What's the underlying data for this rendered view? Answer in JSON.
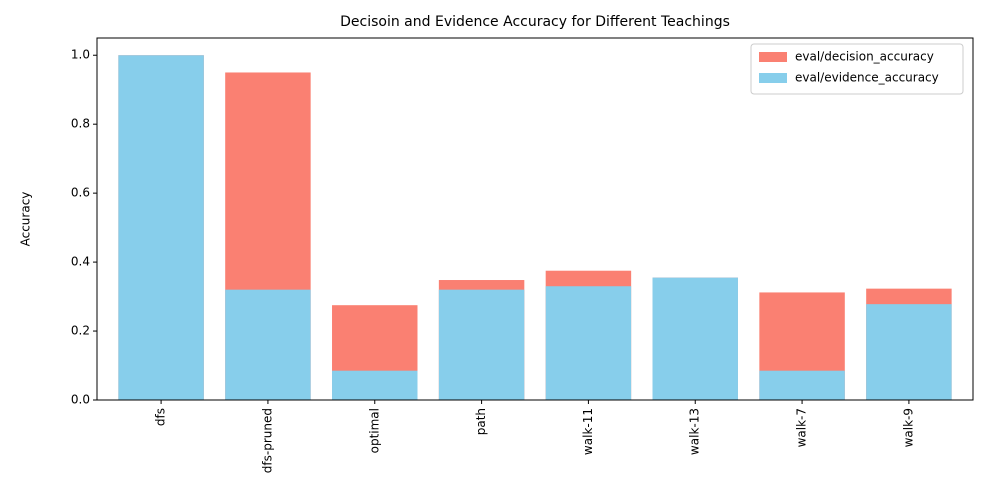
{
  "chart_data": {
    "type": "bar",
    "title": "Decisoin and Evidence Accuracy for Different Teachings",
    "y_label": "Accuracy",
    "categories": [
      "dfs",
      "dfs-pruned",
      "optimal",
      "path",
      "walk-11",
      "walk-13",
      "walk-7",
      "walk-9"
    ],
    "series": [
      {
        "name": "eval/decision_accuracy",
        "color": "#fa8072",
        "values": [
          1.0,
          0.95,
          0.275,
          0.348,
          0.375,
          0.355,
          0.312,
          0.323
        ]
      },
      {
        "name": "eval/evidence_accuracy",
        "color": "#87ceeb",
        "values": [
          1.0,
          0.32,
          0.085,
          0.32,
          0.33,
          0.355,
          0.085,
          0.278
        ]
      }
    ],
    "ylim": [
      0,
      1.05
    ],
    "yticks": [
      {
        "value": 0,
        "label": "0.0"
      },
      {
        "value": 0.2,
        "label": "0.2"
      },
      {
        "value": 0.4,
        "label": "0.4"
      },
      {
        "value": 0.6,
        "label": "0.6"
      },
      {
        "value": 0.8,
        "label": "0.8"
      },
      {
        "value": 1.0,
        "label": "1.0"
      }
    ],
    "legend": "upper-right"
  }
}
